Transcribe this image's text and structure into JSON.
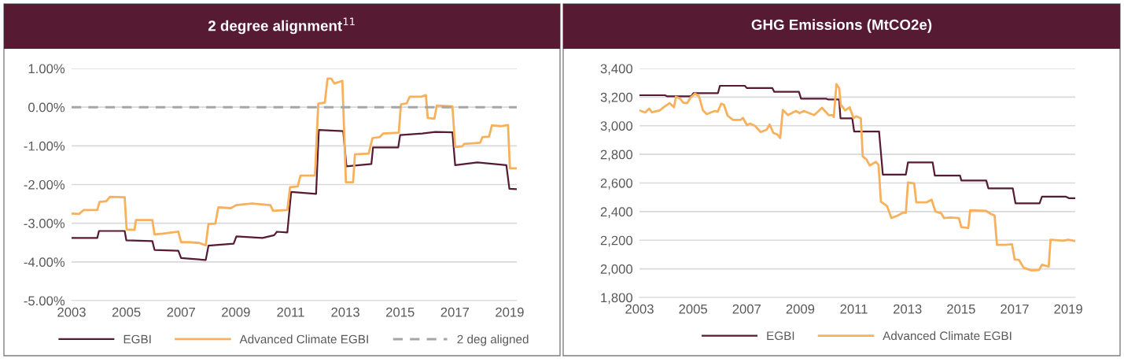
{
  "chart_data": [
    {
      "type": "line",
      "title": "2 degree alignment$^{11}$",
      "xlim": [
        2003,
        2019.26
      ],
      "xticks": [
        2003,
        2005,
        2007,
        2009,
        2011,
        2013,
        2015,
        2017,
        2019
      ],
      "ylim": [
        -5,
        1
      ],
      "yticks": [
        {
          "value": 1,
          "label": "1.00%"
        },
        {
          "value": 0,
          "label": "0.00%"
        },
        {
          "value": -1,
          "label": "-1.00%"
        },
        {
          "value": -2,
          "label": "-2.00%"
        },
        {
          "value": -3,
          "label": "-3.00%"
        },
        {
          "value": -4,
          "label": "-4.00%"
        },
        {
          "value": -5,
          "label": "-5.00%"
        }
      ],
      "grid": "y",
      "legend": "bottom",
      "marker": "none",
      "series": [
        {
          "name": "EGBI",
          "color": "#561a33",
          "line_style": "solid",
          "x": [
            2003,
            2003.94,
            2004.0,
            2004.94,
            2005.0,
            2005.95,
            2006.03,
            2006.9,
            2007.0,
            2007.9,
            2008.0,
            2008.92,
            2009.02,
            2009.97,
            2010.4,
            2010.5,
            2010.88,
            2011.02,
            2011.93,
            2012.03,
            2012.92,
            2013.04,
            2013.95,
            2014.01,
            2014.93,
            2015.0,
            2015.81,
            2016.29,
            2016.91,
            2017.01,
            2017.82,
            2018.88,
            2018.99,
            2019.26
          ],
          "values": [
            -3.38,
            -3.38,
            -3.2,
            -3.2,
            -3.44,
            -3.46,
            -3.69,
            -3.71,
            -3.9,
            -3.95,
            -3.58,
            -3.53,
            -3.34,
            -3.38,
            -3.31,
            -3.22,
            -3.24,
            -2.19,
            -2.24,
            -0.59,
            -0.62,
            -1.53,
            -1.47,
            -1.04,
            -1.04,
            -0.72,
            -0.68,
            -0.64,
            -0.65,
            -1.5,
            -1.43,
            -1.5,
            -2.11,
            -2.12
          ]
        },
        {
          "name": "Advanced Climate EGBI",
          "color": "#f7b15c",
          "line_style": "solid",
          "x": [
            2003,
            2003.27,
            2003.44,
            2003.94,
            2004.02,
            2004.27,
            2004.4,
            2004.94,
            2005.01,
            2005.3,
            2005.35,
            2005.95,
            2006.03,
            2006.33,
            2006.9,
            2007.0,
            2007.29,
            2007.67,
            2007.9,
            2008.0,
            2008.25,
            2008.36,
            2008.82,
            2009.02,
            2009.59,
            2010.26,
            2010.36,
            2010.88,
            2010.98,
            2011.26,
            2011.36,
            2011.89,
            2012.01,
            2012.25,
            2012.35,
            2012.48,
            2012.6,
            2012.89,
            2013.02,
            2013.28,
            2013.35,
            2013.85,
            2013.99,
            2014.26,
            2014.38,
            2014.95,
            2015.03,
            2015.24,
            2015.35,
            2015.77,
            2015.94,
            2016.01,
            2016.25,
            2016.34,
            2016.91,
            2017.01,
            2017.27,
            2017.34,
            2017.92,
            2018.01,
            2018.25,
            2018.35,
            2018.68,
            2018.94,
            2019.01,
            2019.26
          ],
          "values": [
            -2.75,
            -2.76,
            -2.66,
            -2.66,
            -2.45,
            -2.43,
            -2.32,
            -2.33,
            -3.16,
            -3.17,
            -2.92,
            -2.92,
            -3.29,
            -3.27,
            -3.22,
            -3.49,
            -3.49,
            -3.51,
            -3.57,
            -3.02,
            -3.01,
            -2.59,
            -2.61,
            -2.53,
            -2.49,
            -2.53,
            -2.68,
            -2.66,
            -2.07,
            -2.05,
            -1.77,
            -1.77,
            0.09,
            0.12,
            0.74,
            0.74,
            0.61,
            0.68,
            -1.94,
            -1.94,
            -1.22,
            -1.2,
            -0.8,
            -0.77,
            -0.68,
            -0.66,
            0.07,
            0.1,
            0.27,
            0.27,
            0.31,
            -0.28,
            -0.3,
            0.04,
            0.02,
            -1.03,
            -1.01,
            -0.95,
            -0.92,
            -0.77,
            -0.76,
            -0.47,
            -0.49,
            -0.46,
            -1.58,
            -1.58
          ]
        },
        {
          "name": "2 deg aligned",
          "color": "#a6a6a6",
          "line_style": "dashed",
          "x": [
            2003,
            2019.26
          ],
          "values": [
            0,
            0
          ]
        }
      ]
    },
    {
      "type": "line",
      "title": "GHG Emissions (MtCO2e)",
      "xlim": [
        2003,
        2019.26
      ],
      "xticks": [
        2003,
        2005,
        2007,
        2009,
        2011,
        2013,
        2015,
        2017,
        2019
      ],
      "ylim": [
        1800,
        3400
      ],
      "yticks": [
        {
          "value": 1800,
          "label": "1,800"
        },
        {
          "value": 2000,
          "label": "2,000"
        },
        {
          "value": 2200,
          "label": "2,200"
        },
        {
          "value": 2400,
          "label": "2,400"
        },
        {
          "value": 2600,
          "label": "2,600"
        },
        {
          "value": 2800,
          "label": "2,800"
        },
        {
          "value": 3000,
          "label": "3,000"
        },
        {
          "value": 3200,
          "label": "3,200"
        },
        {
          "value": 3400,
          "label": "3,400"
        }
      ],
      "grid": "y",
      "legend": "bottom",
      "marker": "none",
      "series": [
        {
          "name": "EGBI",
          "color": "#561a33",
          "line_style": "solid",
          "x": [
            2003,
            2003.95,
            2004.03,
            2004.93,
            2005.02,
            2005.93,
            2006.0,
            2006.93,
            2007.01,
            2007.96,
            2008.03,
            2008.95,
            2009.03,
            2009.96,
            2010.03,
            2010.45,
            2010.5,
            2010.94,
            2011.01,
            2011.94,
            2012.08,
            2012.94,
            2013.02,
            2013.94,
            2014.02,
            2014.96,
            2015.01,
            2015.94,
            2016.02,
            2016.93,
            2017.03,
            2017.93,
            2018.02,
            2018.9,
            2019.02,
            2019.25
          ],
          "values": [
            3213,
            3213,
            3206,
            3206,
            3228,
            3228,
            3279,
            3279,
            3263,
            3263,
            3237,
            3237,
            3189,
            3189,
            3184,
            3184,
            3052,
            3052,
            2960,
            2960,
            2659,
            2659,
            2744,
            2744,
            2652,
            2652,
            2617,
            2617,
            2562,
            2562,
            2458,
            2458,
            2505,
            2505,
            2494,
            2494
          ]
        },
        {
          "name": "Advanced Climate EGBI",
          "color": "#f7b15c",
          "line_style": "solid",
          "x": [
            2003,
            2003.22,
            2003.36,
            2003.46,
            2003.75,
            2003.9,
            2004.12,
            2004.29,
            2004.36,
            2004.52,
            2004.63,
            2004.78,
            2004.9,
            2005.07,
            2005.22,
            2005.37,
            2005.51,
            2005.81,
            2005.92,
            2006.05,
            2006.15,
            2006.29,
            2006.49,
            2006.78,
            2006.86,
            2007.01,
            2007.13,
            2007.32,
            2007.52,
            2007.74,
            2007.86,
            2007.99,
            2008.15,
            2008.25,
            2008.35,
            2008.54,
            2008.84,
            2008.98,
            2009.13,
            2009.52,
            2009.81,
            2010.06,
            2010.2,
            2010.25,
            2010.35,
            2010.45,
            2010.52,
            2010.55,
            2010.67,
            2010.84,
            2010.99,
            2011.08,
            2011.26,
            2011.33,
            2011.48,
            2011.59,
            2011.82,
            2011.92,
            2012.01,
            2012.24,
            2012.4,
            2012.65,
            2012.82,
            2012.94,
            2013.02,
            2013.25,
            2013.33,
            2013.72,
            2013.9,
            2014.04,
            2014.26,
            2014.36,
            2014.6,
            2014.92,
            2015.01,
            2015.27,
            2015.34,
            2015.92,
            2016.12,
            2016.25,
            2016.34,
            2016.66,
            2016.9,
            2017.0,
            2017.16,
            2017.34,
            2017.63,
            2017.91,
            2018.02,
            2018.27,
            2018.34,
            2018.81,
            2019.0,
            2019.25
          ],
          "values": [
            3107,
            3092,
            3120,
            3094,
            3107,
            3129,
            3158,
            3129,
            3202,
            3189,
            3162,
            3158,
            3195,
            3224,
            3206,
            3107,
            3081,
            3103,
            3098,
            3154,
            3147,
            3070,
            3041,
            3041,
            3055,
            3004,
            3015,
            2997,
            2956,
            2971,
            3008,
            2951,
            2938,
            2914,
            3110,
            3074,
            3103,
            3088,
            3103,
            3074,
            3125,
            3074,
            3074,
            3061,
            3290,
            3262,
            3134,
            3140,
            3107,
            3129,
            3052,
            3066,
            3052,
            2786,
            2762,
            2722,
            2747,
            2727,
            2469,
            2438,
            2355,
            2373,
            2392,
            2392,
            2603,
            2597,
            2465,
            2465,
            2483,
            2401,
            2388,
            2355,
            2359,
            2355,
            2291,
            2286,
            2410,
            2406,
            2383,
            2373,
            2168,
            2168,
            2172,
            2066,
            2062,
            2007,
            1989,
            1992,
            2029,
            2016,
            2203,
            2196,
            2203,
            2194
          ]
        }
      ]
    }
  ]
}
